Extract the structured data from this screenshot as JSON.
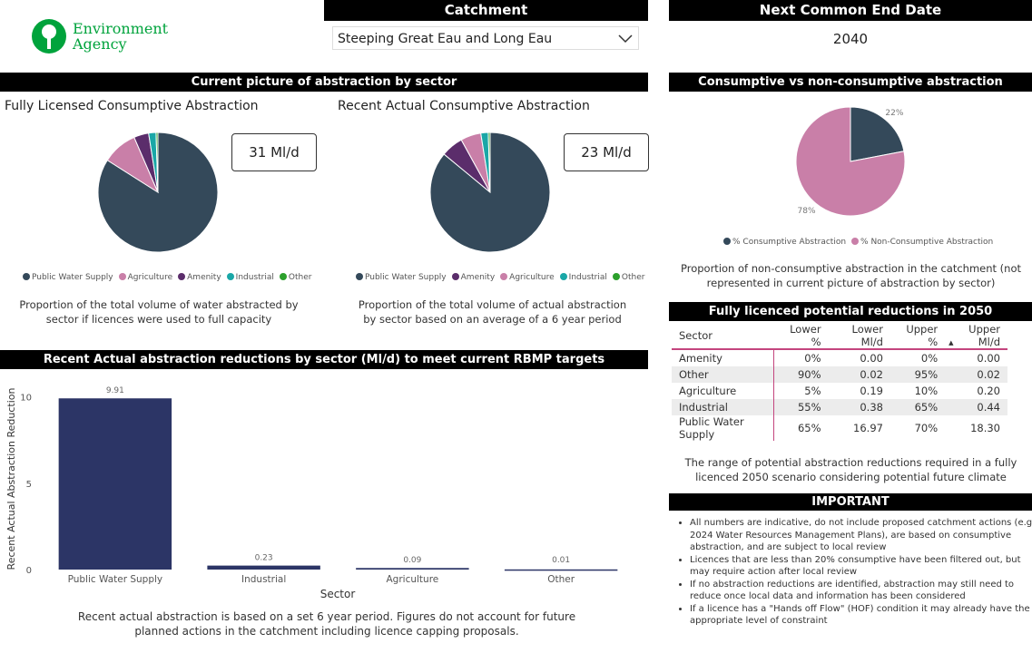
{
  "logo": {
    "line1": "Environment",
    "line2": "Agency"
  },
  "catchment": {
    "title": "Catchment",
    "selected": "Steeping Great Eau and Long Eau"
  },
  "end_date": {
    "title": "Next Common End Date",
    "value": "2040"
  },
  "current": {
    "title": "Current picture of abstraction by sector",
    "full": {
      "title": "Fully Licensed Consumptive Abstraction",
      "kpi": "31 Ml/d",
      "caption": "Proportion of the total volume of water abstracted by sector if licences were used to full capacity",
      "slices": [
        {
          "label": "Public Water Supply",
          "value": 84,
          "color": "#34495a"
        },
        {
          "label": "Agriculture",
          "value": 9.5,
          "color": "#c97fa8"
        },
        {
          "label": "Amenity",
          "value": 4,
          "color": "#5b2d6b"
        },
        {
          "label": "Industrial",
          "value": 2,
          "color": "#1aa7a7"
        },
        {
          "label": "Other",
          "value": 0.5,
          "color": "#2ca02c"
        }
      ]
    },
    "actual": {
      "title": "Recent Actual Consumptive Abstraction",
      "kpi": "23 Ml/d",
      "caption": "Proportion of the total volume of actual abstraction by sector based on an average of a 6 year period",
      "slices": [
        {
          "label": "Public Water Supply",
          "value": 86,
          "color": "#34495a"
        },
        {
          "label": "Amenity",
          "value": 6,
          "color": "#5b2d6b"
        },
        {
          "label": "Agriculture",
          "value": 5.5,
          "color": "#c97fa8"
        },
        {
          "label": "Industrial",
          "value": 2,
          "color": "#1aa7a7"
        },
        {
          "label": "Other",
          "value": 0.5,
          "color": "#2ca02c"
        }
      ]
    }
  },
  "consumptive": {
    "title": "Consumptive vs non-consumptive abstraction",
    "caption": "Proportion of non-consumptive abstraction in the catchment (not represented in current picture of abstraction by sector)",
    "slices": [
      {
        "label": "% Consumptive Abstraction",
        "value": 22,
        "text": "22%",
        "color": "#34495a"
      },
      {
        "label": "% Non-Consumptive Abstraction",
        "value": 78,
        "text": "78%",
        "color": "#c97fa8"
      }
    ]
  },
  "reductions": {
    "title": "Fully licenced potential reductions in 2050",
    "columns": [
      "Sector",
      "Lower %",
      "Lower Ml/d",
      "Upper %",
      "Upper Ml/d"
    ],
    "rows": [
      [
        "Amenity",
        "0%",
        "0.00",
        "0%",
        "0.00"
      ],
      [
        "Other",
        "90%",
        "0.02",
        "95%",
        "0.02"
      ],
      [
        "Agriculture",
        "5%",
        "0.19",
        "10%",
        "0.20"
      ],
      [
        "Industrial",
        "55%",
        "0.38",
        "65%",
        "0.44"
      ],
      [
        "Public Water Supply",
        "65%",
        "16.97",
        "70%",
        "18.30"
      ]
    ],
    "caption": "The range of potential abstraction reductions required in a fully licenced 2050 scenario considering potential future climate"
  },
  "important": {
    "title": "IMPORTANT",
    "items": [
      "All numbers are indicative, do not include proposed catchment actions (e.g. 2024 Water Resources Management Plans), are based on consumptive abstraction, and are subject to local review",
      "Licences that are less than 20% consumptive have been filtered out, but may require action after local review",
      "If no abstraction reductions are identified, abstraction may still need to reduce once local data and information has been considered",
      "If a licence has a \"Hands off Flow\" (HOF) condition it may already have the appropriate level of constraint"
    ]
  },
  "chart_data": {
    "type": "bar",
    "title": "Recent Actual abstraction reductions by sector (Ml/d) to meet current RBMP targets",
    "categories": [
      "Public Water Supply",
      "Industrial",
      "Agriculture",
      "Other"
    ],
    "values": [
      9.91,
      0.23,
      0.09,
      0.01
    ],
    "labels": [
      "9.91",
      "0.23",
      "0.09",
      "0.01"
    ],
    "xlabel": "Sector",
    "ylabel": "Recent Actual Abstraction Reduction",
    "ylim": [
      0,
      10.5
    ],
    "yticks": [
      "0",
      "5",
      "10"
    ],
    "ytick_values": [
      0,
      5,
      10
    ],
    "color": "#2c3566"
  },
  "bar_caption": "Recent actual abstraction is based on a set 6 year period. Figures do not account for future planned actions in the catchment including licence capping proposals."
}
